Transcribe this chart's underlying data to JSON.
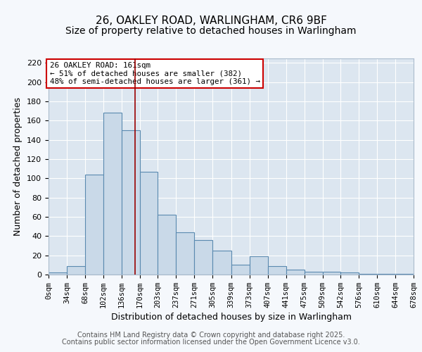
{
  "title1": "26, OAKLEY ROAD, WARLINGHAM, CR6 9BF",
  "title2": "Size of property relative to detached houses in Warlingham",
  "xlabel": "Distribution of detached houses by size in Warlingham",
  "ylabel": "Number of detached properties",
  "bin_edges": [
    0,
    34,
    68,
    102,
    136,
    170,
    203,
    237,
    271,
    305,
    339,
    373,
    407,
    441,
    475,
    509,
    542,
    576,
    610,
    644,
    678
  ],
  "bar_heights": [
    2,
    9,
    104,
    168,
    150,
    107,
    62,
    44,
    36,
    25,
    10,
    19,
    9,
    5,
    3,
    3,
    2,
    1,
    1,
    1
  ],
  "bar_color": "#c9d9e8",
  "bar_edge_color": "#5a8ab0",
  "bar_edge_width": 0.8,
  "vline_x": 161,
  "vline_color": "#990000",
  "annotation_title": "26 OAKLEY ROAD: 161sqm",
  "annotation_line1": "← 51% of detached houses are smaller (382)",
  "annotation_line2": "48% of semi-detached houses are larger (361) →",
  "annotation_box_color": "#cc0000",
  "ylim": [
    0,
    225
  ],
  "yticks": [
    0,
    20,
    40,
    60,
    80,
    100,
    120,
    140,
    160,
    180,
    200,
    220
  ],
  "background_color": "#dce6f0",
  "fig_background_color": "#f5f8fc",
  "grid_color": "#ffffff",
  "footer1": "Contains HM Land Registry data © Crown copyright and database right 2025.",
  "footer2": "Contains public sector information licensed under the Open Government Licence v3.0.",
  "title_fontsize": 11,
  "subtitle_fontsize": 10,
  "tick_label_fontsize": 7.5,
  "axis_label_fontsize": 9,
  "footer_fontsize": 7
}
